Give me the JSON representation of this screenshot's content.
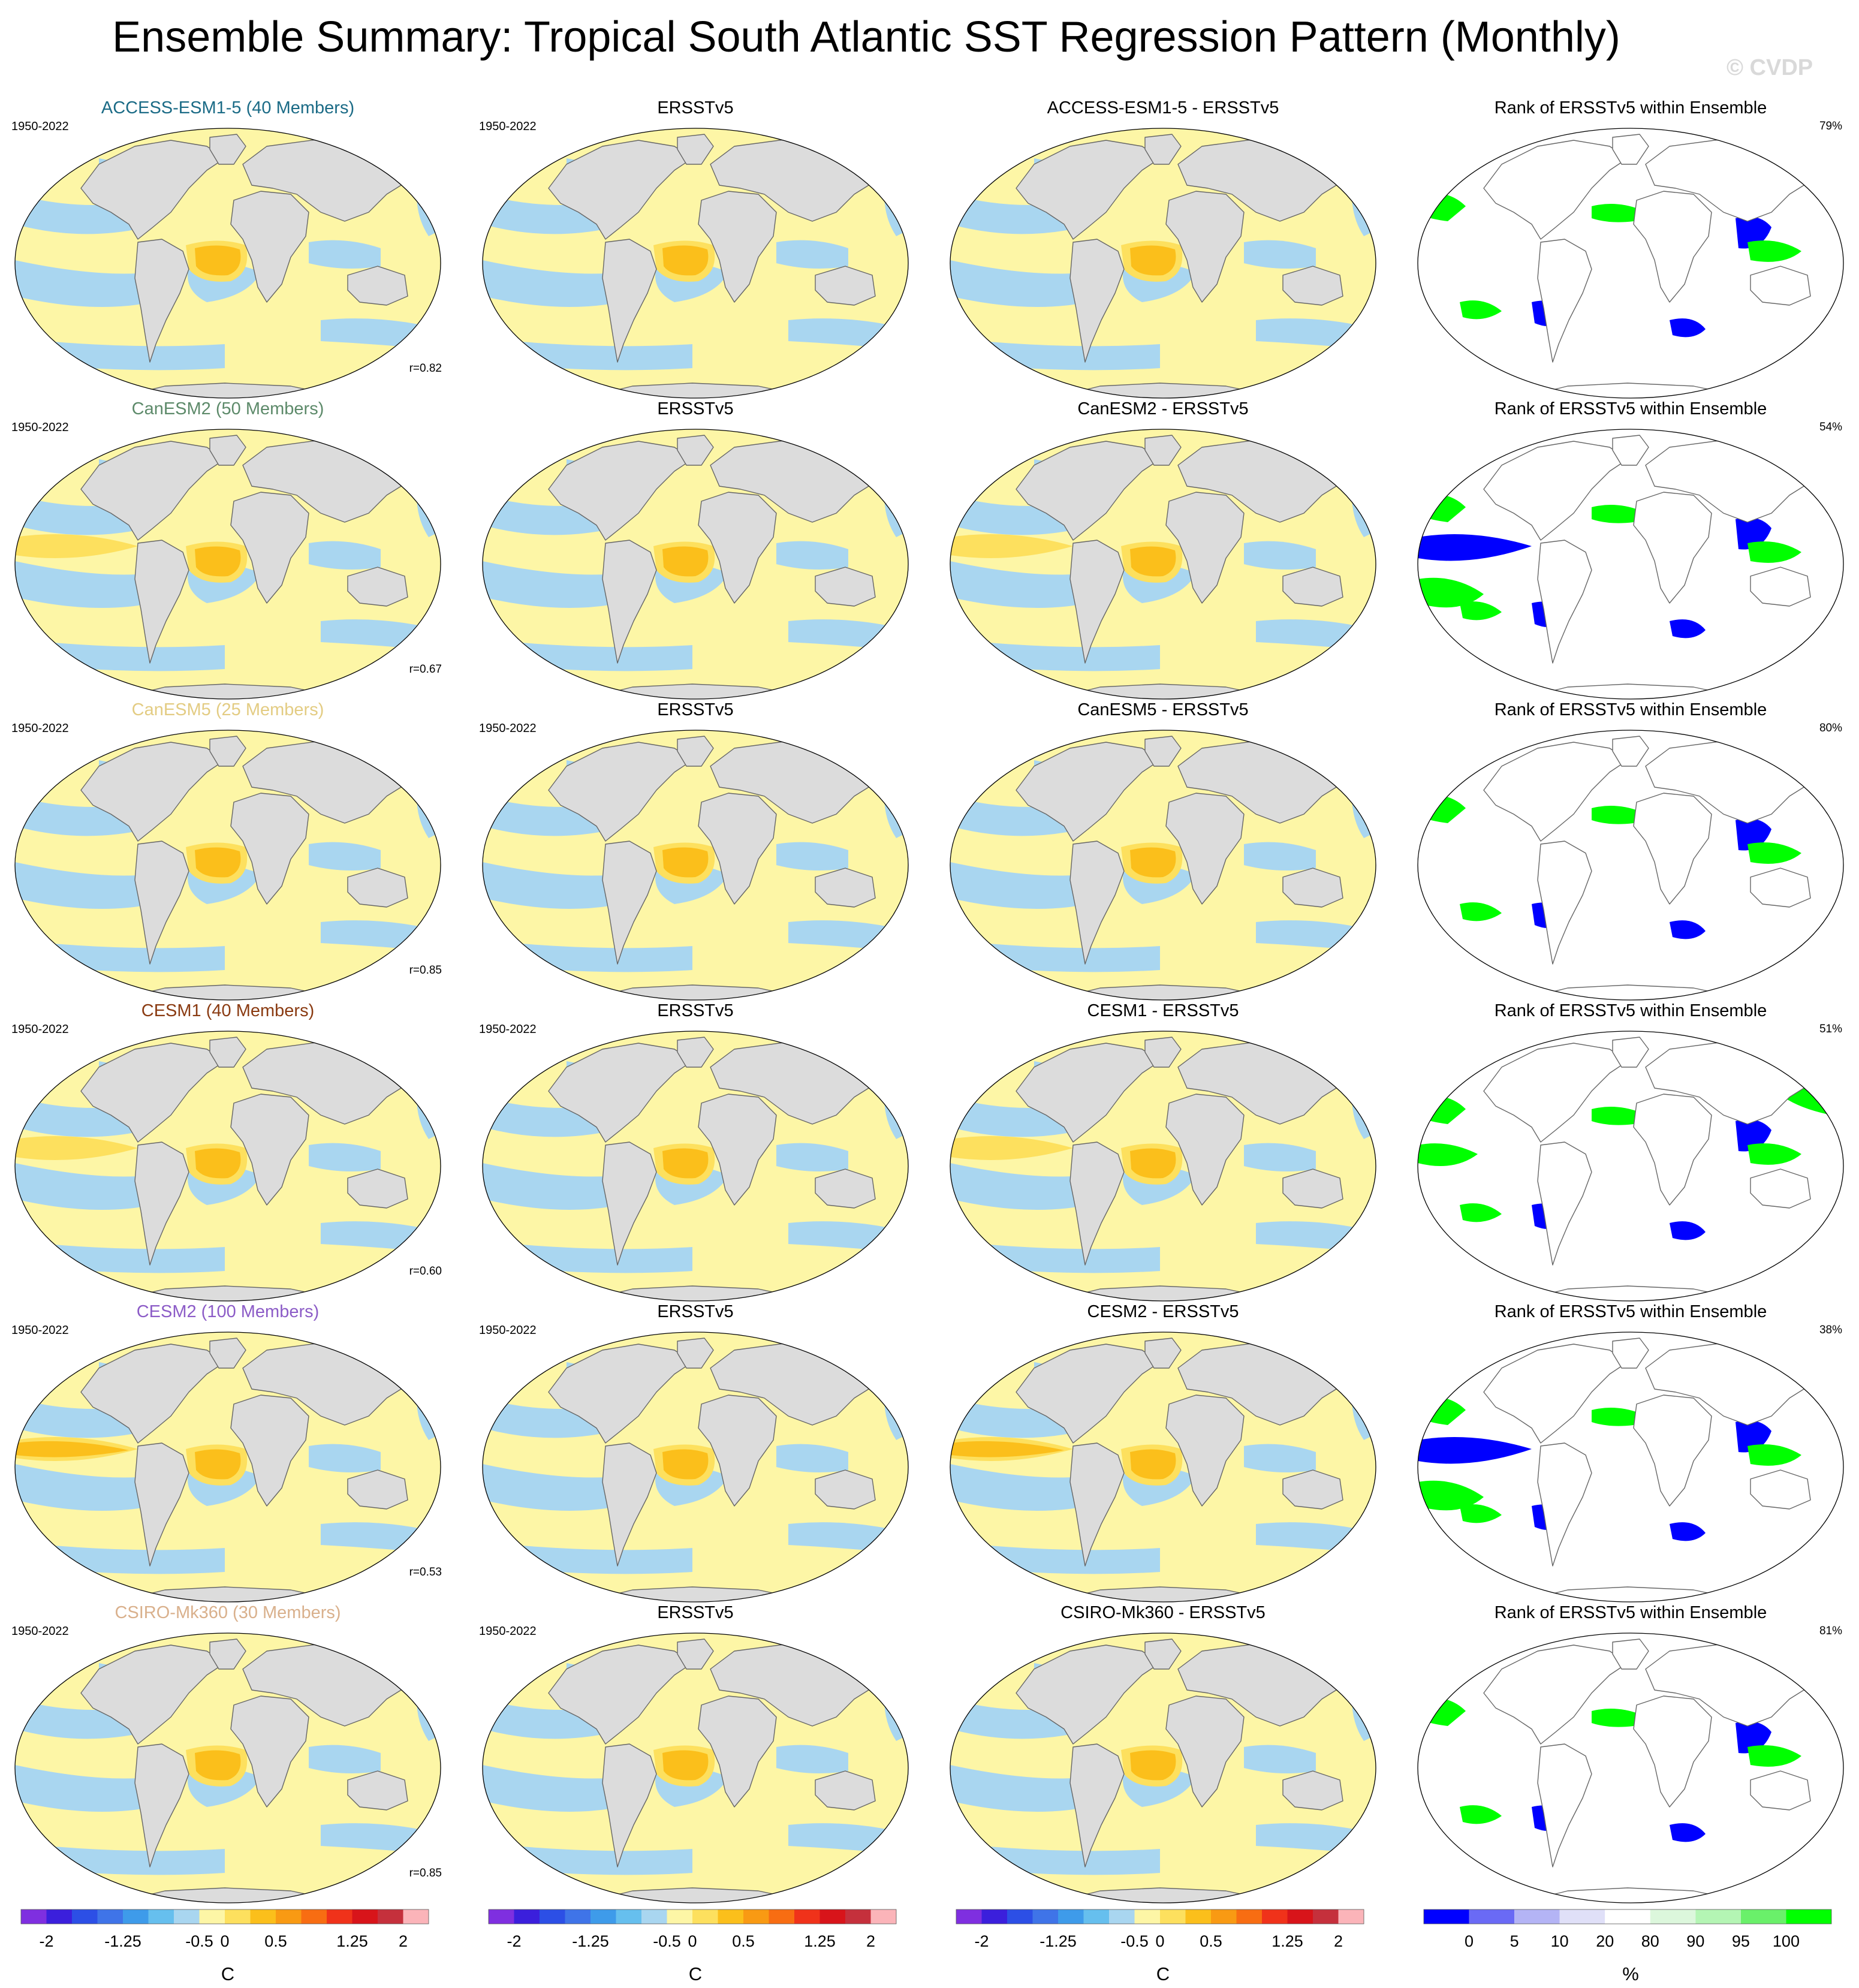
{
  "title": "Ensemble Summary: Tropical South Atlantic SST Regression Pattern (Monthly)",
  "watermark": "© CVDP",
  "period": "1950-2022",
  "rows": [
    {
      "model": "ACCESS-ESM1-5 (40 Members)",
      "model_color": "#1b6b86",
      "obs": "ERSSTv5",
      "diff": "ACCESS-ESM1-5 - ERSSTv5",
      "rank": "Rank of ERSSTv5 within Ensemble",
      "pct": "79%",
      "corr": "r=0.82",
      "show_obs_period": true
    },
    {
      "model": "CanESM2 (50 Members)",
      "model_color": "#5d8a6a",
      "obs": "ERSSTv5",
      "diff": "CanESM2 - ERSSTv5",
      "rank": "Rank of ERSSTv5 within Ensemble",
      "pct": "54%",
      "corr": "r=0.67",
      "show_obs_period": false
    },
    {
      "model": "CanESM5 (25 Members)",
      "model_color": "#e3cc83",
      "obs": "ERSSTv5",
      "diff": "CanESM5 - ERSSTv5",
      "rank": "Rank of ERSSTv5 within Ensemble",
      "pct": "80%",
      "corr": "r=0.85",
      "show_obs_period": true
    },
    {
      "model": "CESM1 (40 Members)",
      "model_color": "#8a3b12",
      "obs": "ERSSTv5",
      "diff": "CESM1 - ERSSTv5",
      "rank": "Rank of ERSSTv5 within Ensemble",
      "pct": "51%",
      "corr": "r=0.60",
      "show_obs_period": true
    },
    {
      "model": "CESM2 (100 Members)",
      "model_color": "#8c5cc7",
      "obs": "ERSSTv5",
      "diff": "CESM2 - ERSSTv5",
      "rank": "Rank of ERSSTv5 within Ensemble",
      "pct": "38%",
      "corr": "r=0.53",
      "show_obs_period": true
    },
    {
      "model": "CSIRO-Mk360 (30 Members)",
      "model_color": "#d9b08c",
      "obs": "ERSSTv5",
      "diff": "CSIRO-Mk360 - ERSSTv5",
      "rank": "Rank of ERSSTv5 within Ensemble",
      "pct": "81%",
      "corr": "r=0.85",
      "show_obs_period": true
    }
  ],
  "colorbars": {
    "sst": {
      "unit": "C",
      "ticks": [
        "-2",
        "-1.25",
        "-0.5",
        "0",
        "0.5",
        "1.25",
        "2"
      ],
      "colors": [
        "#7f2fe0",
        "#3b1fdc",
        "#2c4fe6",
        "#3f74e8",
        "#3e9bea",
        "#66bfee",
        "#a9d6f0",
        "#fdf6a6",
        "#fde05e",
        "#fbbf1b",
        "#f99a13",
        "#f86d12",
        "#f0321a",
        "#d8141a",
        "#c5303c",
        "#fbb4b9"
      ]
    },
    "rank": {
      "unit": "%",
      "ticks": [
        "0",
        "5",
        "10",
        "20",
        "80",
        "90",
        "95",
        "100"
      ],
      "colors": [
        "#0000ff",
        "#6a6af5",
        "#b4b4f5",
        "#e0e0f8",
        "#ffffff",
        "#dcf7dc",
        "#b4f5b4",
        "#6af06a",
        "#00ff00"
      ]
    }
  },
  "colors": {
    "land": "#dcdcdc",
    "coast": "#666666",
    "ocean_pos": "#fdf6a6",
    "ocean_neg": "#a9d6f0",
    "warm1": "#fde05e",
    "warm2": "#fbbf1b",
    "warm3": "#f99a13",
    "rank_blue": "#0000ff",
    "rank_green": "#00ff00"
  }
}
